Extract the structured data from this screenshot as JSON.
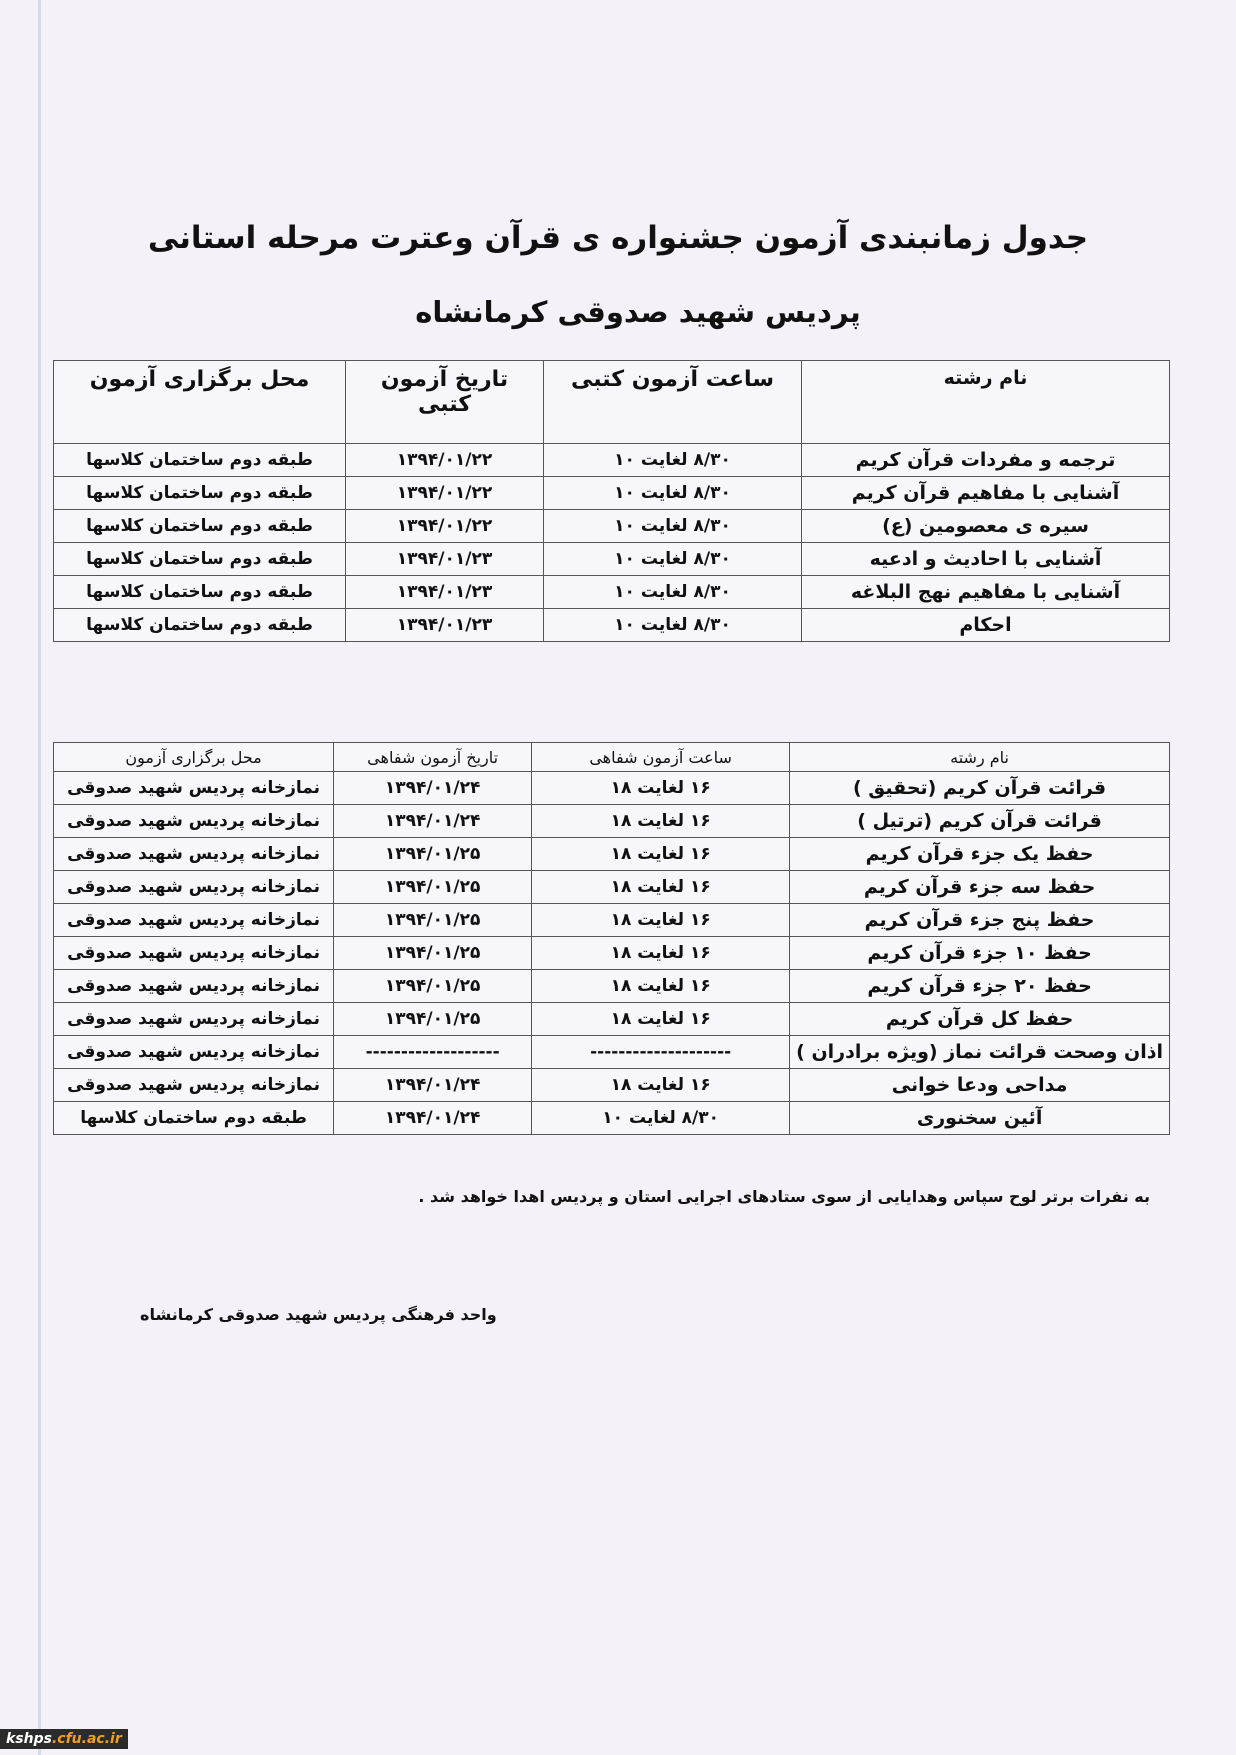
{
  "title": "جدول زمانبندی آزمون جشنواره ی قرآن وعترت مرحله استانی",
  "subtitle": "پردیس شهید صدوقی کرمانشاه",
  "written_table": {
    "headers": [
      "نام رشته",
      "ساعت آزمون کتبی",
      "تاریخ آزمون کتبی",
      "محل برگزاری آزمون"
    ],
    "rows": [
      [
        "ترجمه و مفردات قرآن کریم",
        "۸/۳۰  لغایت ۱۰",
        "۱۳۹۴/۰۱/۲۲",
        "طبقه دوم ساختمان کلاسها"
      ],
      [
        "آشنایی با مفاهیم قرآن کریم",
        "۸/۳۰  لغایت ۱۰",
        "۱۳۹۴/۰۱/۲۲",
        "طبقه دوم ساختمان کلاسها"
      ],
      [
        "سیره ی معصومین (ع)",
        "۸/۳۰  لغایت ۱۰",
        "۱۳۹۴/۰۱/۲۲",
        "طبقه دوم ساختمان کلاسها"
      ],
      [
        "آشنایی با احادیث و ادعیه",
        "۸/۳۰  لغایت ۱۰",
        "۱۳۹۴/۰۱/۲۳",
        "طبقه دوم ساختمان کلاسها"
      ],
      [
        "آشنایی با مفاهیم نهج البلاغه",
        "۸/۳۰  لغایت ۱۰",
        "۱۳۹۴/۰۱/۲۳",
        "طبقه دوم ساختمان کلاسها"
      ],
      [
        "احکام",
        "۸/۳۰  لغایت ۱۰",
        "۱۳۹۴/۰۱/۲۳",
        "طبقه دوم ساختمان کلاسها"
      ]
    ]
  },
  "oral_table": {
    "headers": [
      "نام رشته",
      "ساعت آزمون شفاهی",
      "تاریخ آزمون شفاهی",
      "محل برگزاری آزمون"
    ],
    "rows": [
      [
        "قرائت قرآن کریم  (تحقیق )",
        "۱۶  لغایت ۱۸",
        "۱۳۹۴/۰۱/۲۴",
        "نمازخانه پردیس شهید صدوقی"
      ],
      [
        "قرائت قرآن کریم  (ترتیل )",
        "۱۶  لغایت ۱۸",
        "۱۳۹۴/۰۱/۲۴",
        "نمازخانه پردیس شهید صدوقی"
      ],
      [
        "حفظ یک جزء قرآن کریم",
        "۱۶  لغایت ۱۸",
        "۱۳۹۴/۰۱/۲۵",
        "نمازخانه پردیس شهید صدوقی"
      ],
      [
        "حفظ سه جزء قرآن کریم",
        "۱۶  لغایت ۱۸",
        "۱۳۹۴/۰۱/۲۵",
        "نمازخانه پردیس شهید صدوقی"
      ],
      [
        "حفظ پنج  جزء قرآن کریم",
        "۱۶  لغایت ۱۸",
        "۱۳۹۴/۰۱/۲۵",
        "نمازخانه پردیس شهید صدوقی"
      ],
      [
        "حفظ ۱۰ جزء قرآن کریم",
        "۱۶  لغایت ۱۸",
        "۱۳۹۴/۰۱/۲۵",
        "نمازخانه پردیس شهید صدوقی"
      ],
      [
        "حفظ ۲۰ جزء قرآن کریم",
        "۱۶  لغایت ۱۸",
        "۱۳۹۴/۰۱/۲۵",
        "نمازخانه پردیس شهید صدوقی"
      ],
      [
        "حفظ کل قرآن کریم",
        "۱۶  لغایت ۱۸",
        "۱۳۹۴/۰۱/۲۵",
        "نمازخانه پردیس شهید صدوقی"
      ],
      [
        "اذان وصحت قرائت نماز (ویژه برادران )",
        "--------------------",
        "-------------------",
        "نمازخانه پردیس شهید صدوقی"
      ],
      [
        "مداحی ودعا خوانی",
        "۱۶  لغایت ۱۸",
        "۱۳۹۴/۰۱/۲۴",
        "نمازخانه پردیس شهید صدوقی"
      ],
      [
        "آئین سخنوری",
        "۸/۳۰  لغایت ۱۰",
        "۱۳۹۴/۰۱/۲۴",
        "طبقه دوم ساختمان کلاسها"
      ]
    ]
  },
  "note": "به نفرات برتر لوح سپاس وهدایایی از سوی ستادهای اجرایی استان و پردیس اهدا خواهد شد .",
  "signature": "واحد فرهنگی پردیس شهید صدوقی کرمانشاه",
  "watermark": {
    "part1": "kshps",
    "part2": ".cfu.ac.ir"
  }
}
